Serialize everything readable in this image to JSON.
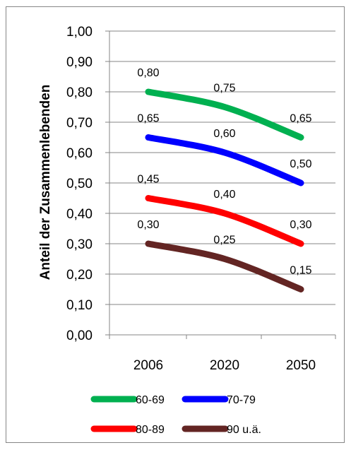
{
  "chart_data": {
    "type": "line",
    "title": "",
    "xlabel": "",
    "ylabel": "Anteil der Zusammenlebenden",
    "categories": [
      "2006",
      "2020",
      "2050"
    ],
    "ylim": [
      0,
      1
    ],
    "yticks": [
      "0,00",
      "0,10",
      "0,20",
      "0,30",
      "0,40",
      "0,50",
      "0,60",
      "0,70",
      "0,80",
      "0,90",
      "1,00"
    ],
    "grid": true,
    "legend_position": "bottom",
    "series": [
      {
        "name": "60-69",
        "color": "#00b050",
        "values": [
          0.8,
          0.75,
          0.65
        ],
        "labels": [
          "0,80",
          "0,75",
          "0,65"
        ]
      },
      {
        "name": "70-79",
        "color": "#0000ff",
        "values": [
          0.65,
          0.6,
          0.5
        ],
        "labels": [
          "0,65",
          "0,60",
          "0,50"
        ]
      },
      {
        "name": "80-89",
        "color": "#ff0000",
        "values": [
          0.45,
          0.4,
          0.3
        ],
        "labels": [
          "0,45",
          "0,40",
          "0,30"
        ]
      },
      {
        "name": "90 u.ä.",
        "color": "#632523",
        "values": [
          0.3,
          0.25,
          0.15
        ],
        "labels": [
          "0,30",
          "0,25",
          "0,15"
        ]
      }
    ]
  }
}
